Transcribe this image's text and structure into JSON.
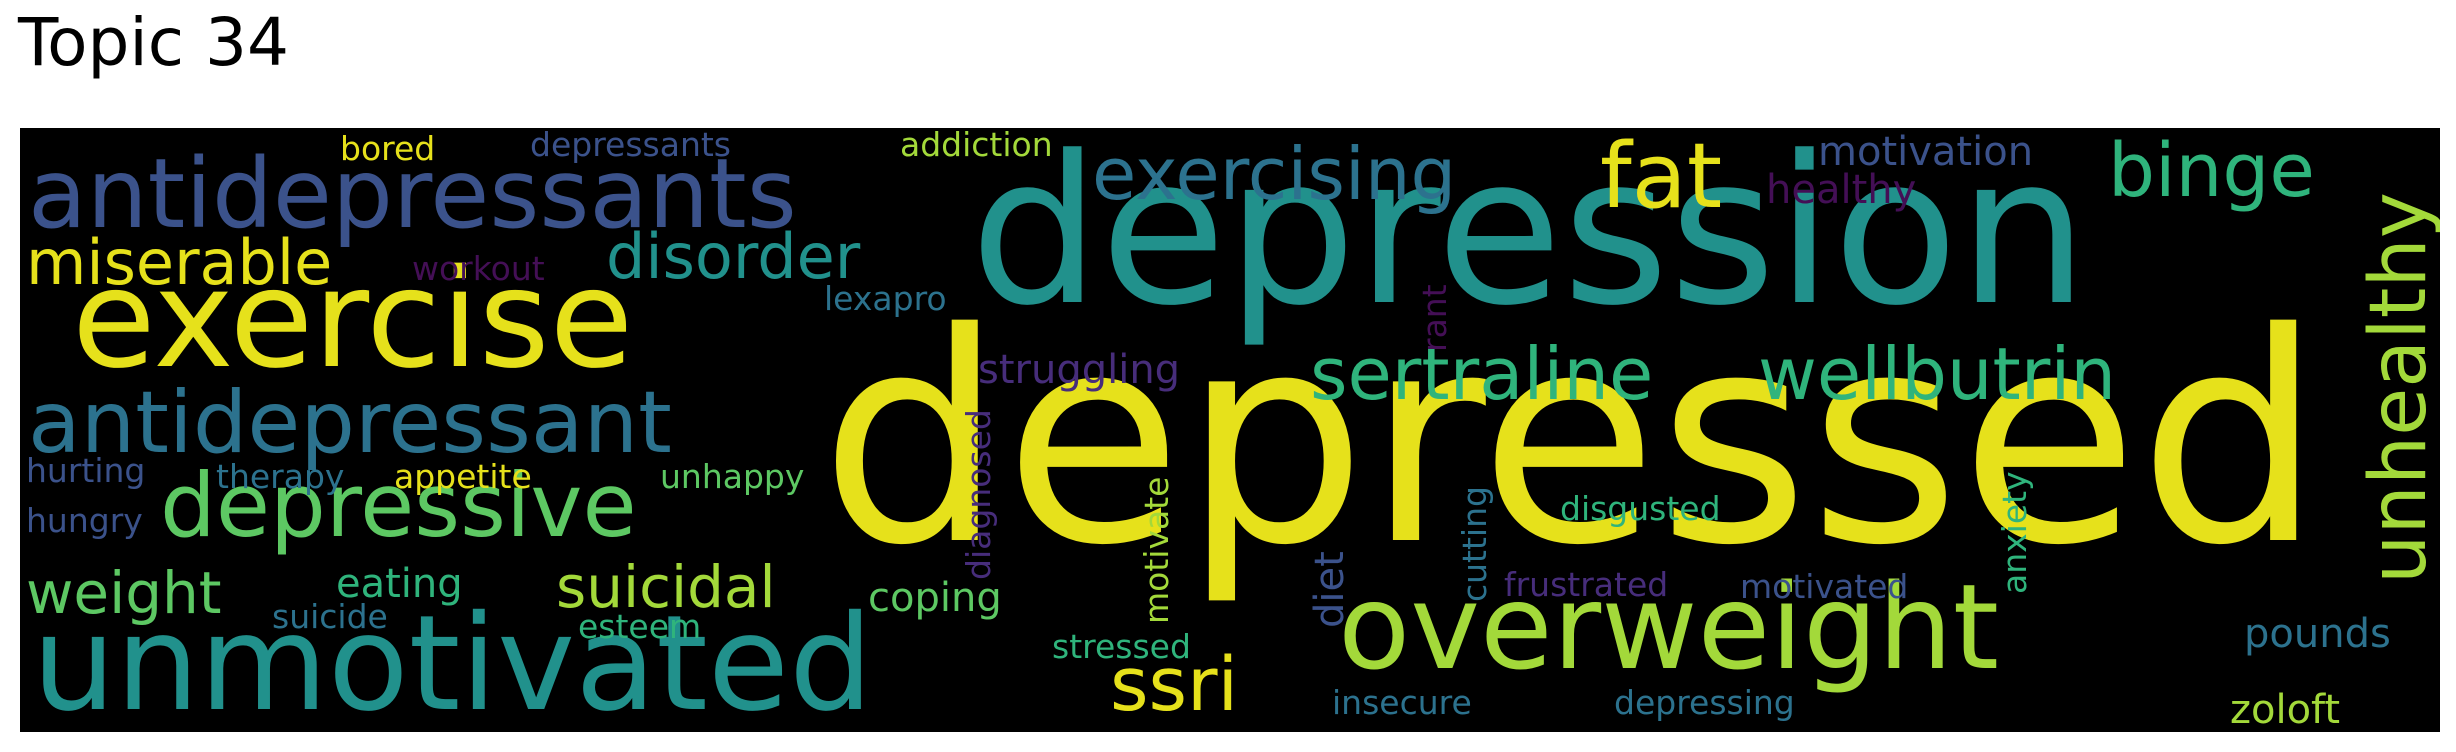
{
  "title": "Topic 34",
  "words": {
    "depressed": "depressed",
    "depression": "depression",
    "exercise": "exercise",
    "unmotivated": "unmotivated",
    "overweight": "overweight",
    "antidepressants": "antidepressants",
    "antidepressant": "antidepressant",
    "depressive": "depressive",
    "exercising": "exercising",
    "fat": "fat",
    "binge": "binge",
    "unhealthy": "unhealthy",
    "sertraline": "sertraline",
    "wellbutrin": "wellbutrin",
    "miserable": "miserable",
    "disorder": "disorder",
    "ssri": "ssri",
    "suicidal": "suicidal",
    "weight": "weight",
    "bored": "bored",
    "depressants": "depressants",
    "addiction": "addiction",
    "motivation": "motivation",
    "healthy": "healthy",
    "workout": "workout",
    "lexapro": "lexapro",
    "struggling": "struggling",
    "rant": "rant",
    "hurting": "hurting",
    "therapy": "therapy",
    "appetite": "appetite",
    "unhappy": "unhappy",
    "hungry": "hungry",
    "eating": "eating",
    "coping": "coping",
    "suicide": "suicide",
    "esteem": "esteem",
    "diagnosed": "diagnosed",
    "motivate": "motivate",
    "diet": "diet",
    "cutting": "cutting",
    "disgusted": "disgusted",
    "anxiety": "anxiety",
    "frustrated": "frustrated",
    "motivated": "motivated",
    "pounds": "pounds",
    "stressed": "stressed",
    "insecure": "insecure",
    "depressing": "depressing",
    "zoloft": "zoloft"
  },
  "colors": {
    "background": "#000000",
    "yellow": "#e6e11b",
    "lime": "#a3d93a",
    "green": "#5dc863",
    "seagreen": "#2fb47c",
    "teal": "#21918c",
    "steel": "#2c728e",
    "blue": "#3b528b",
    "indigo": "#472d7b",
    "purple": "#440f56"
  }
}
